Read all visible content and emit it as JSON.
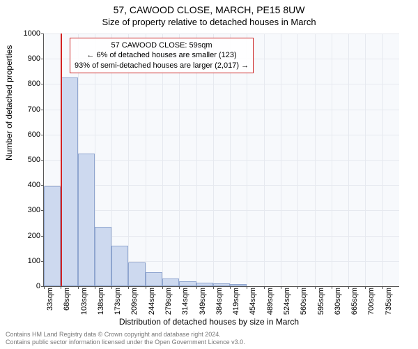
{
  "titles": {
    "main": "57, CAWOOD CLOSE, MARCH, PE15 8UW",
    "sub": "Size of property relative to detached houses in March"
  },
  "axes": {
    "ylabel": "Number of detached properties",
    "xlabel": "Distribution of detached houses by size in March",
    "ylim": [
      0,
      1000
    ],
    "ytick_step": 100,
    "xticks": [
      "33sqm",
      "68sqm",
      "103sqm",
      "138sqm",
      "173sqm",
      "209sqm",
      "244sqm",
      "279sqm",
      "314sqm",
      "349sqm",
      "384sqm",
      "419sqm",
      "454sqm",
      "489sqm",
      "524sqm",
      "560sqm",
      "595sqm",
      "630sqm",
      "665sqm",
      "700sqm",
      "735sqm"
    ]
  },
  "chart": {
    "type": "histogram",
    "bar_color": "#cdd9ef",
    "bar_border_color": "#8fa5cf",
    "background_color": "#f7f9fc",
    "grid_color": "#e6e9ef",
    "reference_line_color": "#d32222",
    "reference_line_x_index": 1,
    "values": [
      395,
      825,
      525,
      235,
      160,
      95,
      55,
      30,
      20,
      15,
      10,
      8,
      0,
      0,
      0,
      0,
      0,
      0,
      0,
      0,
      0
    ]
  },
  "annotation": {
    "line1": "57 CAWOOD CLOSE: 59sqm",
    "line2": "← 6% of detached houses are smaller (123)",
    "line3": "93% of semi-detached houses are larger (2,017) →"
  },
  "footer": {
    "line1": "Contains HM Land Registry data © Crown copyright and database right 2024.",
    "line2": "Contains public sector information licensed under the Open Government Licence v3.0."
  }
}
